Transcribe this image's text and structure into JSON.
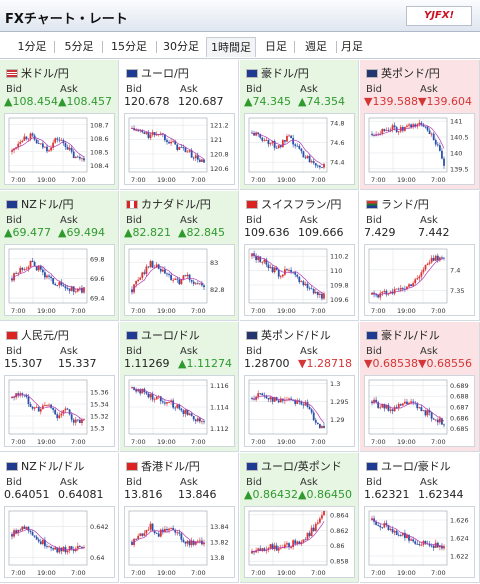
{
  "app": {
    "title": "FXチャート・レート",
    "logo": "YJFX!"
  },
  "tabs": [
    {
      "label": "1分足",
      "selected": false
    },
    {
      "label": "5分足",
      "selected": false
    },
    {
      "label": "15分足",
      "selected": false
    },
    {
      "label": "30分足",
      "selected": false
    },
    {
      "label": "1時間足",
      "selected": true
    },
    {
      "label": "日足",
      "selected": false
    },
    {
      "label": "週足",
      "selected": false
    },
    {
      "label": "月足",
      "selected": false
    }
  ],
  "labels": {
    "bid": "Bid",
    "ask": "Ask"
  },
  "colors": {
    "up_bg": "#e7f5e3",
    "down_bg": "#fbe3e5",
    "up_text": "#2e9a2e",
    "down_text": "#d43535",
    "candle_up": "#d33",
    "candle_down": "#2b50a8",
    "ma": "#b03bb0"
  },
  "pairs": [
    {
      "name": "米ドル/円",
      "flag": "us",
      "status": "up",
      "bid": "▲108.454",
      "ask": "▲108.457",
      "y_ticks": [
        "108.7",
        "108.6",
        "108.5",
        "108.4"
      ],
      "x_ticks": [
        "7:00",
        "19:00",
        "7:00"
      ],
      "chart_data": {
        "type": "candlestick",
        "ylim": [
          108.35,
          108.75
        ],
        "trend": [
          108.5,
          108.6,
          108.62,
          108.55,
          108.52,
          108.6,
          108.55,
          108.45,
          108.46
        ]
      }
    },
    {
      "name": "ユーロ/円",
      "flag": "eu",
      "status": "flat",
      "bid": "120.678",
      "ask": "120.687",
      "y_ticks": [
        "121.2",
        "121",
        "120.8",
        "120.6"
      ],
      "x_ticks": [
        "7:00",
        "19:00",
        "7:00"
      ],
      "chart_data": {
        "type": "candlestick",
        "ylim": [
          120.55,
          121.3
        ],
        "trend": [
          121.15,
          121.1,
          121.05,
          121.1,
          121.0,
          120.9,
          120.85,
          120.75,
          120.68
        ]
      }
    },
    {
      "name": "豪ドル/円",
      "flag": "au",
      "status": "up",
      "bid": "▲74.345",
      "ask": "▲74.354",
      "y_ticks": [
        "74.8",
        "74.6",
        "74.4"
      ],
      "x_ticks": [
        "7:00",
        "19:00",
        "7:00"
      ],
      "chart_data": {
        "type": "candlestick",
        "ylim": [
          74.3,
          74.85
        ],
        "trend": [
          74.7,
          74.65,
          74.6,
          74.55,
          74.65,
          74.55,
          74.45,
          74.4,
          74.35
        ]
      }
    },
    {
      "name": "英ポンド/円",
      "flag": "uk",
      "status": "down",
      "bid": "▼139.588",
      "ask": "▼139.604",
      "y_ticks": [
        "141",
        "140.5",
        "140",
        "139.5"
      ],
      "x_ticks": [
        "7:00",
        "19:00",
        "7:00"
      ],
      "chart_data": {
        "type": "candlestick",
        "ylim": [
          139.4,
          141.1
        ],
        "trend": [
          140.6,
          140.7,
          140.8,
          140.7,
          140.8,
          140.9,
          140.85,
          140.4,
          139.6
        ]
      }
    },
    {
      "name": "NZドル/円",
      "flag": "nz",
      "status": "up",
      "bid": "▲69.477",
      "ask": "▲69.494",
      "y_ticks": [
        "69.8",
        "69.6",
        "69.4"
      ],
      "x_ticks": [
        "7:00",
        "19:00",
        "7:00"
      ],
      "chart_data": {
        "type": "candlestick",
        "ylim": [
          69.35,
          69.9
        ],
        "trend": [
          69.6,
          69.7,
          69.75,
          69.7,
          69.6,
          69.55,
          69.5,
          69.48,
          69.48
        ]
      }
    },
    {
      "name": "カナダドル/円",
      "flag": "ca",
      "status": "up",
      "bid": "▲82.821",
      "ask": "▲82.845",
      "y_ticks": [
        "83",
        "82.8"
      ],
      "x_ticks": [
        "7:00",
        "19:00",
        "7:00"
      ],
      "chart_data": {
        "type": "candlestick",
        "ylim": [
          82.7,
          83.1
        ],
        "trend": [
          82.8,
          82.9,
          83.0,
          82.95,
          82.9,
          82.85,
          82.9,
          82.85,
          82.82
        ]
      }
    },
    {
      "name": "スイスフラン/円",
      "flag": "ch",
      "status": "flat",
      "bid": "109.636",
      "ask": "109.666",
      "y_ticks": [
        "110.2",
        "110",
        "109.8",
        "109.6"
      ],
      "x_ticks": [
        "7:00",
        "19:00",
        "7:00"
      ],
      "chart_data": {
        "type": "candlestick",
        "ylim": [
          109.55,
          110.3
        ],
        "trend": [
          110.2,
          110.15,
          110.05,
          109.95,
          110.0,
          109.9,
          109.8,
          109.7,
          109.64
        ]
      }
    },
    {
      "name": "ランド/円",
      "flag": "za",
      "status": "flat",
      "bid": "7.429",
      "ask": "7.442",
      "y_ticks": [
        "7.4",
        "7.35"
      ],
      "x_ticks": [
        "7:00",
        "19:00",
        "7:00"
      ],
      "chart_data": {
        "type": "candlestick",
        "ylim": [
          7.32,
          7.45
        ],
        "trend": [
          7.34,
          7.34,
          7.35,
          7.35,
          7.36,
          7.38,
          7.41,
          7.43,
          7.43
        ]
      }
    },
    {
      "name": "人民元/円",
      "flag": "cn",
      "status": "flat",
      "bid": "15.307",
      "ask": "15.337",
      "y_ticks": [
        "15.36",
        "15.34",
        "15.32",
        "15.3"
      ],
      "x_ticks": [
        "7:00",
        "19:00",
        "7:00"
      ],
      "chart_data": {
        "type": "candlestick",
        "ylim": [
          15.29,
          15.38
        ],
        "trend": [
          15.35,
          15.36,
          15.34,
          15.33,
          15.34,
          15.32,
          15.33,
          15.31,
          15.31
        ]
      }
    },
    {
      "name": "ユーロ/ドル",
      "flag": "eu",
      "status": "up",
      "bid": "1.11269",
      "ask": "▲1.11274",
      "y_ticks": [
        "1.116",
        "1.114",
        "1.112"
      ],
      "x_ticks": [
        "7:00",
        "19:00",
        "7:00"
      ],
      "chart_data": {
        "type": "candlestick",
        "ylim": [
          1.1115,
          1.1165
        ],
        "trend": [
          1.1158,
          1.1155,
          1.115,
          1.1148,
          1.1145,
          1.114,
          1.1135,
          1.113,
          1.1127
        ]
      }
    },
    {
      "name": "英ポンド/ドル",
      "flag": "uk",
      "status": "flat",
      "bid": "1.28700",
      "ask": "▼1.28718",
      "y_ticks": [
        "1.3",
        "1.295",
        "1.29"
      ],
      "x_ticks": [
        "7:00",
        "19:00",
        "7:00"
      ],
      "chart_data": {
        "type": "candlestick",
        "ylim": [
          1.286,
          1.301
        ],
        "trend": [
          1.296,
          1.297,
          1.296,
          1.295,
          1.296,
          1.295,
          1.294,
          1.29,
          1.287
        ]
      }
    },
    {
      "name": "豪ドル/ドル",
      "flag": "au",
      "status": "down",
      "bid": "▼0.68538",
      "ask": "▼0.68556",
      "y_ticks": [
        "0.689",
        "0.688",
        "0.687",
        "0.686",
        "0.685"
      ],
      "x_ticks": [
        "7:00",
        "19:00",
        "7:00"
      ],
      "chart_data": {
        "type": "candlestick",
        "ylim": [
          0.6845,
          0.6895
        ],
        "trend": [
          0.6875,
          0.687,
          0.6868,
          0.687,
          0.6875,
          0.687,
          0.6865,
          0.686,
          0.6854
        ]
      }
    },
    {
      "name": "NZドル/ドル",
      "flag": "nz",
      "status": "flat",
      "bid": "0.64051",
      "ask": "0.64081",
      "y_ticks": [
        "0.642",
        "0.64"
      ],
      "x_ticks": [
        "7:00",
        "19:00",
        "7:00"
      ],
      "chart_data": {
        "type": "candlestick",
        "ylim": [
          0.6395,
          0.643
        ],
        "trend": [
          0.6415,
          0.642,
          0.6418,
          0.641,
          0.6408,
          0.6405,
          0.6405,
          0.6406,
          0.6405
        ]
      }
    },
    {
      "name": "香港ドル/円",
      "flag": "hk",
      "status": "flat",
      "bid": "13.816",
      "ask": "13.846",
      "y_ticks": [
        "13.84",
        "13.82",
        "13.8"
      ],
      "x_ticks": [
        "7:00",
        "19:00",
        "7:00"
      ],
      "chart_data": {
        "type": "candlestick",
        "ylim": [
          13.79,
          13.86
        ],
        "trend": [
          13.82,
          13.83,
          13.84,
          13.83,
          13.84,
          13.83,
          13.82,
          13.82,
          13.82
        ]
      }
    },
    {
      "name": "ユーロ/英ポンド",
      "flag": "eu",
      "status": "up",
      "bid": "▲0.86432",
      "ask": "▲0.86450",
      "y_ticks": [
        "0.864",
        "0.862",
        "0.86",
        "0.858"
      ],
      "x_ticks": [
        "7:00",
        "19:00",
        "7:00"
      ],
      "chart_data": {
        "type": "candlestick",
        "ylim": [
          0.8575,
          0.8645
        ],
        "trend": [
          0.859,
          0.8595,
          0.86,
          0.8595,
          0.86,
          0.8605,
          0.861,
          0.8625,
          0.8643
        ]
      }
    },
    {
      "name": "ユーロ/豪ドル",
      "flag": "eu",
      "status": "flat",
      "bid": "1.62321",
      "ask": "1.62344",
      "y_ticks": [
        "1.626",
        "1.624",
        "1.622"
      ],
      "x_ticks": [
        "7:00",
        "19:00",
        "7:00"
      ],
      "chart_data": {
        "type": "candlestick",
        "ylim": [
          1.621,
          1.627
        ],
        "trend": [
          1.626,
          1.6255,
          1.625,
          1.6245,
          1.624,
          1.6235,
          1.6235,
          1.6232,
          1.6232
        ]
      }
    }
  ]
}
